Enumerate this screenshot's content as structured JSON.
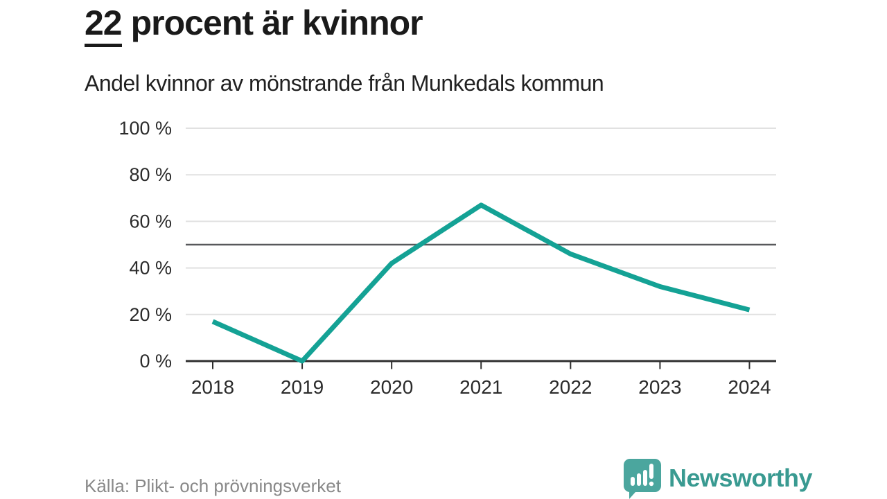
{
  "header": {
    "title_highlight": "22",
    "title_rest": "procent är kvinnor",
    "subtitle": "Andel kvinnor av mönstrande från Munkedals kommun"
  },
  "chart_data": {
    "type": "line",
    "title": "22 procent är kvinnor",
    "subtitle": "Andel kvinnor av mönstrande från Munkedals kommun",
    "categories": [
      "2018",
      "2019",
      "2020",
      "2021",
      "2022",
      "2023",
      "2024"
    ],
    "series": [
      {
        "name": "Andel kvinnor av mönstrande",
        "values": [
          17,
          0,
          42,
          67,
          46,
          32,
          22
        ]
      }
    ],
    "xlabel": "",
    "ylabel": "",
    "ylim": [
      0,
      100
    ],
    "yticks": [
      0,
      20,
      40,
      60,
      80,
      100
    ],
    "ytick_suffix": " %",
    "reference_line": 50,
    "grid": true,
    "legend": false,
    "line_color": "#14a295",
    "grid_color": "#e1e1e1",
    "reference_line_color": "#58595b",
    "axis_color": "#2e2e2e",
    "label_color": "#2b2b2b"
  },
  "footer": {
    "source": "Källa: Plikt- och prövningsverket",
    "brand_name": "Newsworthy",
    "brand_color": "#399a91",
    "logo_icon": "bar-chart-speech-bubble-icon",
    "logo_color": "#4ba69e"
  }
}
